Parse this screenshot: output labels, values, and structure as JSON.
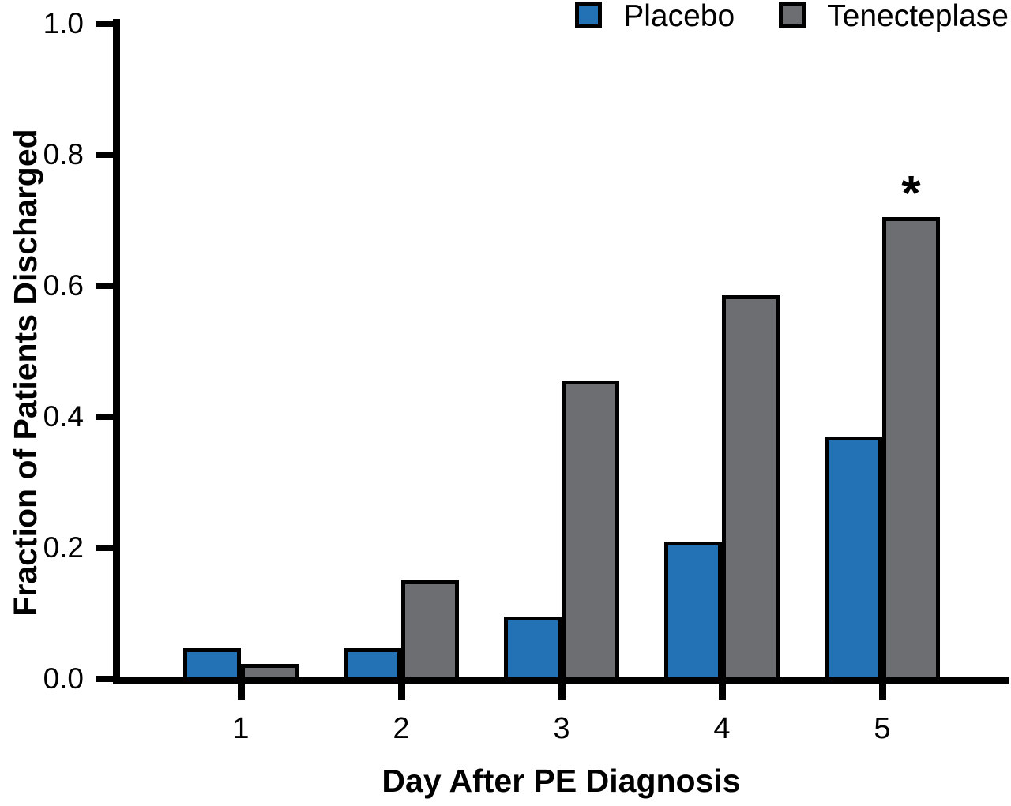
{
  "chart_data": {
    "type": "bar",
    "title": "",
    "xlabel": "Day After PE Diagnosis",
    "ylabel": "Fraction of Patients Discharged",
    "categories": [
      "1",
      "2",
      "3",
      "4",
      "5"
    ],
    "series": [
      {
        "name": "Placebo",
        "color": "#2272b5",
        "values": [
          0.047,
          0.047,
          0.095,
          0.21,
          0.37
        ]
      },
      {
        "name": "Tenecteplase",
        "color": "#6d6e71",
        "values": [
          0.023,
          0.15,
          0.455,
          0.585,
          0.705
        ]
      }
    ],
    "ylim": [
      0.0,
      1.0
    ],
    "yticks": [
      0.0,
      0.2,
      0.4,
      0.6,
      0.8,
      1.0
    ],
    "ytick_labels": [
      "0.0",
      "0.2",
      "0.4",
      "0.6",
      "0.8",
      "1.0"
    ],
    "grid": false,
    "legend_position": "top-right",
    "annotations": [
      {
        "text": "*",
        "series": "Tenecteplase",
        "category": "5",
        "meaning": "significance-marker"
      }
    ]
  },
  "colors": {
    "placebo": "#2272b5",
    "tenecteplase": "#6d6e71",
    "axis": "#000000",
    "background": "#ffffff"
  }
}
